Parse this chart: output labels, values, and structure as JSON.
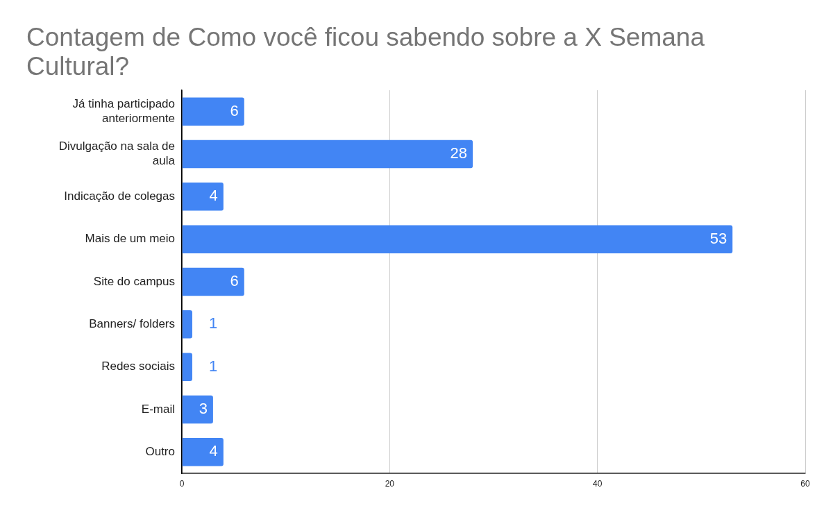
{
  "chart_data": {
    "type": "bar",
    "orientation": "horizontal",
    "title": "Contagem de Como você ficou sabendo sobre a X Semana Cultural?",
    "categories": [
      "Já tinha participado anteriormente",
      "Divulgação na sala de aula",
      "Indicação de colegas",
      "Mais de um meio",
      "Site do campus",
      "Banners/ folders",
      "Redes sociais",
      "E-mail",
      "Outro"
    ],
    "values": [
      6,
      28,
      4,
      53,
      6,
      1,
      1,
      3,
      4
    ],
    "color": "#4285f4",
    "xlim": [
      0,
      60
    ],
    "xticks": [
      0,
      20,
      40,
      60
    ],
    "grid": "x",
    "legend": false,
    "data_labels": true
  }
}
